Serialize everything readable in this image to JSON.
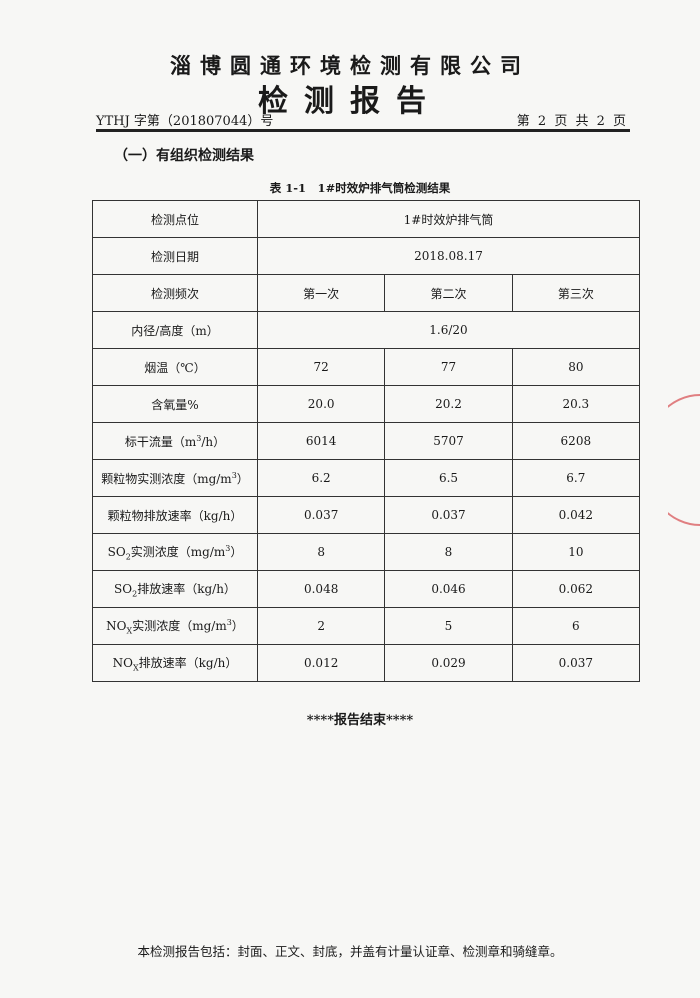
{
  "header": {
    "company": "淄博圆通环境检测有限公司",
    "title": "检测报告",
    "ref_no": "YTHJ 字第（201807044）号",
    "page": "第 2 页 共 2 页"
  },
  "section_title": "（一）有组织检测结果",
  "table_caption": "表 1-1　1#时效炉排气筒检测结果",
  "table": {
    "rows": [
      {
        "label": {
          "pre": "检测点位"
        },
        "merged": "1#时效炉排气筒"
      },
      {
        "label": {
          "pre": "检测日期"
        },
        "merged": "2018.08.17"
      },
      {
        "label": {
          "pre": "检测频次"
        },
        "values": [
          "第一次",
          "第二次",
          "第三次"
        ]
      },
      {
        "label": {
          "pre": "内径/高度（m）"
        },
        "merged": "1.6/20"
      },
      {
        "label": {
          "pre": "烟温（℃）"
        },
        "values": [
          "72",
          "77",
          "80"
        ]
      },
      {
        "label": {
          "pre": "含氧量%"
        },
        "values": [
          "20.0",
          "20.2",
          "20.3"
        ]
      },
      {
        "label": {
          "pre": "标干流量（m",
          "sup": "3",
          "post": "/h）"
        },
        "values": [
          "6014",
          "5707",
          "6208"
        ]
      },
      {
        "label": {
          "pre": "颗粒物实测浓度（mg/m",
          "sup": "3",
          "post": "）"
        },
        "values": [
          "6.2",
          "6.5",
          "6.7"
        ]
      },
      {
        "label": {
          "pre": "颗粒物排放速率（kg/h）"
        },
        "values": [
          "0.037",
          "0.037",
          "0.042"
        ]
      },
      {
        "label": {
          "pre": "SO",
          "sub": "2",
          "post": "实测浓度（mg/m",
          "sup": "3",
          "post2": "）"
        },
        "values": [
          "8",
          "8",
          "10"
        ]
      },
      {
        "label": {
          "pre": "SO",
          "sub": "2",
          "post": "排放速率（kg/h）"
        },
        "values": [
          "0.048",
          "0.046",
          "0.062"
        ]
      },
      {
        "label": {
          "pre": "NO",
          "sub": "X",
          "post": "实测浓度（mg/m",
          "sup": "3",
          "post2": "）"
        },
        "values": [
          "2",
          "5",
          "6"
        ]
      },
      {
        "label": {
          "pre": "NO",
          "sub": "X",
          "post": "排放速率（kg/h）"
        },
        "values": [
          "0.012",
          "0.029",
          "0.037"
        ]
      }
    ]
  },
  "end_note": "****报告结束****",
  "footer": "本检测报告包括：封面、正文、封底，并盖有计量认证章、检测章和骑缝章。",
  "colors": {
    "seal": "#d9585b"
  }
}
